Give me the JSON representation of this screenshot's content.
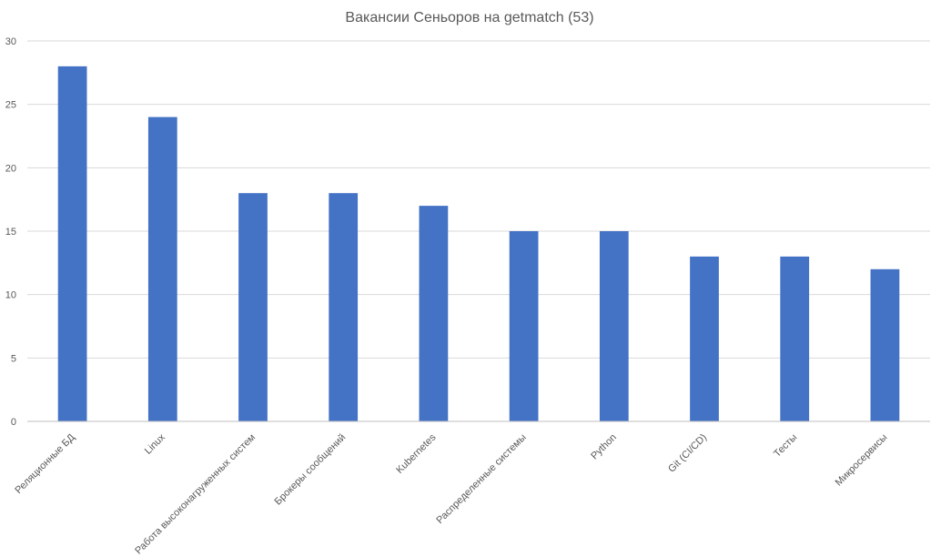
{
  "chart_data": {
    "type": "bar",
    "title": "Вакансии Сеньоров на getmatch (53)",
    "categories": [
      "Реляционные БД",
      "Linux",
      "Работа высоконагруженных систем",
      "Брокеры сообщений",
      "Kubernetes",
      "Распределенные системы",
      "Python",
      "Git (CI/CD)",
      "Тесты",
      "Микросервисы"
    ],
    "values": [
      28,
      24,
      18,
      18,
      17,
      15,
      15,
      13,
      13,
      12
    ],
    "ylim": [
      0,
      30
    ],
    "yticks": [
      0,
      5,
      10,
      15,
      20,
      25,
      30
    ],
    "grid": true,
    "bar_color": "#4472c4",
    "xlabel": "",
    "ylabel": ""
  }
}
